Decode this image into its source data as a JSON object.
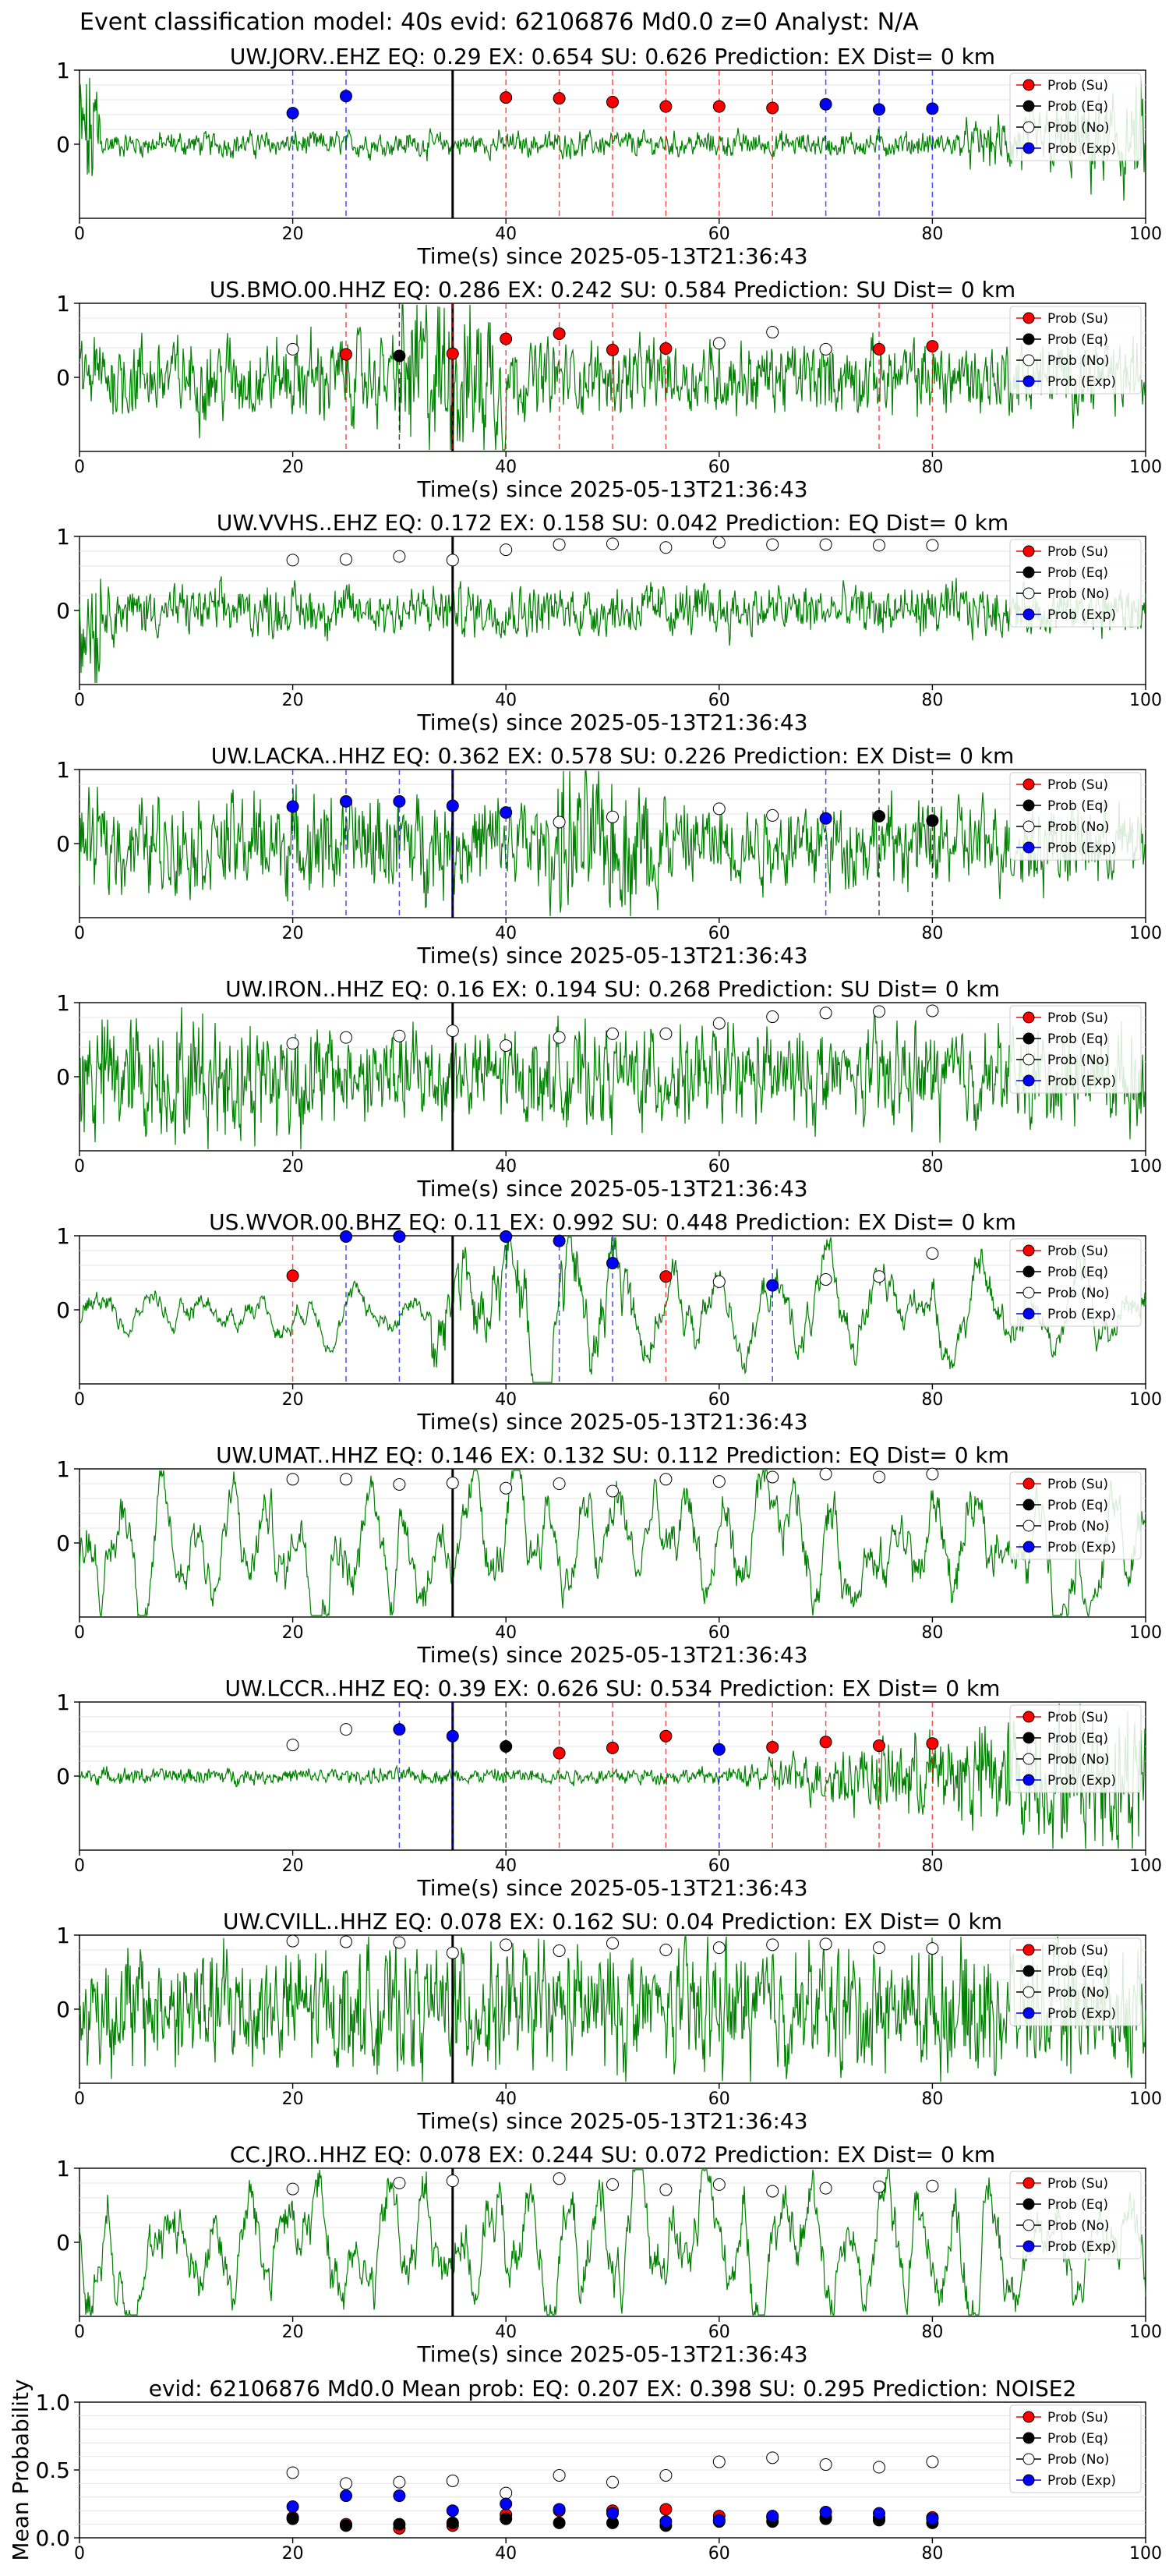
{
  "figure_title": "Event classification model: 40s evid: 62106876 Md0.0 z=0 Analyst: N/A",
  "legend_labels": [
    "Prob (Su)",
    "Prob (Eq)",
    "Prob (No)",
    "Prob (Exp)"
  ],
  "colors": {
    "su": "#ff0000",
    "eq": "#000000",
    "no": "#ffffff",
    "exp": "#0000ff",
    "trace": "#008000",
    "pick": "#000000"
  },
  "x_ticks": [
    "0",
    "20",
    "40",
    "60",
    "80",
    "100"
  ],
  "y_ticks_panel": [
    "0",
    "1"
  ],
  "y_ticks_mean": [
    "0.0",
    "0.5",
    "1.0"
  ],
  "xlabel": "Time(s) since 2025-05-13T21:36:43",
  "mean_ylabel": "Mean Probability",
  "chart_data": [
    {
      "type": "line",
      "title": "UW.JORV..EHZ   EQ: 0.29  EX: 0.654  SU: 0.626   Prediction: EX    Dist= 0 km",
      "xlim": [
        0,
        100
      ],
      "ylim": [
        -1,
        1
      ],
      "pick_time": 35,
      "points": [
        {
          "x": 20,
          "y": 0.42,
          "cls": "exp"
        },
        {
          "x": 25,
          "y": 0.65,
          "cls": "exp"
        },
        {
          "x": 40,
          "y": 0.63,
          "cls": "su"
        },
        {
          "x": 45,
          "y": 0.62,
          "cls": "su"
        },
        {
          "x": 50,
          "y": 0.57,
          "cls": "su"
        },
        {
          "x": 55,
          "y": 0.51,
          "cls": "su"
        },
        {
          "x": 60,
          "y": 0.51,
          "cls": "su"
        },
        {
          "x": 65,
          "y": 0.49,
          "cls": "su"
        },
        {
          "x": 70,
          "y": 0.54,
          "cls": "exp"
        },
        {
          "x": 75,
          "y": 0.47,
          "cls": "exp"
        },
        {
          "x": 80,
          "y": 0.48,
          "cls": "exp"
        }
      ]
    },
    {
      "type": "line",
      "title": "US.BMO.00.HHZ   EQ: 0.286  EX: 0.242  SU: 0.584   Prediction: SU    Dist= 0 km",
      "xlim": [
        0,
        100
      ],
      "ylim": [
        -1,
        1
      ],
      "pick_time": 35,
      "points": [
        {
          "x": 20,
          "y": 0.38,
          "cls": "no"
        },
        {
          "x": 25,
          "y": 0.31,
          "cls": "su"
        },
        {
          "x": 30,
          "y": 0.29,
          "cls": "eq"
        },
        {
          "x": 35,
          "y": 0.32,
          "cls": "su"
        },
        {
          "x": 40,
          "y": 0.52,
          "cls": "su"
        },
        {
          "x": 45,
          "y": 0.59,
          "cls": "su"
        },
        {
          "x": 50,
          "y": 0.37,
          "cls": "su"
        },
        {
          "x": 55,
          "y": 0.39,
          "cls": "su"
        },
        {
          "x": 60,
          "y": 0.46,
          "cls": "no"
        },
        {
          "x": 65,
          "y": 0.61,
          "cls": "no"
        },
        {
          "x": 70,
          "y": 0.38,
          "cls": "no"
        },
        {
          "x": 75,
          "y": 0.38,
          "cls": "su"
        },
        {
          "x": 80,
          "y": 0.42,
          "cls": "su"
        }
      ]
    },
    {
      "type": "line",
      "title": "UW.VVHS..EHZ   EQ: 0.172  EX: 0.158  SU: 0.042   Prediction: EQ    Dist= 0 km",
      "xlim": [
        0,
        100
      ],
      "ylim": [
        -1,
        1
      ],
      "pick_time": 35,
      "points": [
        {
          "x": 20,
          "y": 0.68,
          "cls": "no"
        },
        {
          "x": 25,
          "y": 0.69,
          "cls": "no"
        },
        {
          "x": 30,
          "y": 0.73,
          "cls": "no"
        },
        {
          "x": 35,
          "y": 0.68,
          "cls": "no"
        },
        {
          "x": 40,
          "y": 0.82,
          "cls": "no"
        },
        {
          "x": 45,
          "y": 0.89,
          "cls": "no"
        },
        {
          "x": 50,
          "y": 0.9,
          "cls": "no"
        },
        {
          "x": 55,
          "y": 0.85,
          "cls": "no"
        },
        {
          "x": 60,
          "y": 0.92,
          "cls": "no"
        },
        {
          "x": 65,
          "y": 0.89,
          "cls": "no"
        },
        {
          "x": 70,
          "y": 0.89,
          "cls": "no"
        },
        {
          "x": 75,
          "y": 0.88,
          "cls": "no"
        },
        {
          "x": 80,
          "y": 0.88,
          "cls": "no"
        }
      ]
    },
    {
      "type": "line",
      "title": "UW.LACKA..HHZ   EQ: 0.362  EX: 0.578  SU: 0.226   Prediction: EX    Dist= 0 km",
      "xlim": [
        0,
        100
      ],
      "ylim": [
        -1,
        1
      ],
      "pick_time": 35,
      "points": [
        {
          "x": 20,
          "y": 0.5,
          "cls": "exp"
        },
        {
          "x": 25,
          "y": 0.57,
          "cls": "exp"
        },
        {
          "x": 30,
          "y": 0.57,
          "cls": "exp"
        },
        {
          "x": 35,
          "y": 0.51,
          "cls": "exp"
        },
        {
          "x": 40,
          "y": 0.42,
          "cls": "exp"
        },
        {
          "x": 45,
          "y": 0.29,
          "cls": "no"
        },
        {
          "x": 50,
          "y": 0.36,
          "cls": "no"
        },
        {
          "x": 60,
          "y": 0.47,
          "cls": "no"
        },
        {
          "x": 65,
          "y": 0.38,
          "cls": "no"
        },
        {
          "x": 70,
          "y": 0.34,
          "cls": "exp"
        },
        {
          "x": 75,
          "y": 0.37,
          "cls": "eq"
        },
        {
          "x": 80,
          "y": 0.31,
          "cls": "eq"
        }
      ]
    },
    {
      "type": "line",
      "title": "UW.IRON..HHZ   EQ: 0.16  EX: 0.194  SU: 0.268   Prediction: SU    Dist= 0 km",
      "xlim": [
        0,
        100
      ],
      "ylim": [
        -1,
        1
      ],
      "pick_time": 35,
      "points": [
        {
          "x": 20,
          "y": 0.45,
          "cls": "no"
        },
        {
          "x": 25,
          "y": 0.53,
          "cls": "no"
        },
        {
          "x": 30,
          "y": 0.55,
          "cls": "no"
        },
        {
          "x": 35,
          "y": 0.62,
          "cls": "no"
        },
        {
          "x": 40,
          "y": 0.42,
          "cls": "no"
        },
        {
          "x": 45,
          "y": 0.53,
          "cls": "no"
        },
        {
          "x": 50,
          "y": 0.58,
          "cls": "no"
        },
        {
          "x": 55,
          "y": 0.58,
          "cls": "no"
        },
        {
          "x": 60,
          "y": 0.72,
          "cls": "no"
        },
        {
          "x": 65,
          "y": 0.81,
          "cls": "no"
        },
        {
          "x": 70,
          "y": 0.86,
          "cls": "no"
        },
        {
          "x": 75,
          "y": 0.88,
          "cls": "no"
        },
        {
          "x": 80,
          "y": 0.89,
          "cls": "no"
        }
      ]
    },
    {
      "type": "line",
      "title": "US.WVOR.00.BHZ   EQ: 0.11  EX: 0.992  SU: 0.448   Prediction: EX    Dist= 0 km",
      "xlim": [
        0,
        100
      ],
      "ylim": [
        -1,
        1
      ],
      "pick_time": 35,
      "points": [
        {
          "x": 20,
          "y": 0.46,
          "cls": "su"
        },
        {
          "x": 25,
          "y": 0.99,
          "cls": "exp"
        },
        {
          "x": 30,
          "y": 0.99,
          "cls": "exp"
        },
        {
          "x": 40,
          "y": 0.99,
          "cls": "exp"
        },
        {
          "x": 45,
          "y": 0.93,
          "cls": "exp"
        },
        {
          "x": 50,
          "y": 0.63,
          "cls": "exp"
        },
        {
          "x": 55,
          "y": 0.45,
          "cls": "su"
        },
        {
          "x": 60,
          "y": 0.38,
          "cls": "no"
        },
        {
          "x": 65,
          "y": 0.33,
          "cls": "exp"
        },
        {
          "x": 70,
          "y": 0.41,
          "cls": "no"
        },
        {
          "x": 75,
          "y": 0.45,
          "cls": "no"
        },
        {
          "x": 80,
          "y": 0.76,
          "cls": "no"
        }
      ]
    },
    {
      "type": "line",
      "title": "UW.UMAT..HHZ   EQ: 0.146  EX: 0.132  SU: 0.112   Prediction: EQ    Dist= 0 km",
      "xlim": [
        0,
        100
      ],
      "ylim": [
        -1,
        1
      ],
      "pick_time": 35,
      "points": [
        {
          "x": 20,
          "y": 0.86,
          "cls": "no"
        },
        {
          "x": 25,
          "y": 0.86,
          "cls": "no"
        },
        {
          "x": 30,
          "y": 0.79,
          "cls": "no"
        },
        {
          "x": 35,
          "y": 0.81,
          "cls": "no"
        },
        {
          "x": 40,
          "y": 0.74,
          "cls": "no"
        },
        {
          "x": 45,
          "y": 0.8,
          "cls": "no"
        },
        {
          "x": 50,
          "y": 0.7,
          "cls": "no"
        },
        {
          "x": 55,
          "y": 0.86,
          "cls": "no"
        },
        {
          "x": 60,
          "y": 0.83,
          "cls": "no"
        },
        {
          "x": 65,
          "y": 0.89,
          "cls": "no"
        },
        {
          "x": 70,
          "y": 0.93,
          "cls": "no"
        },
        {
          "x": 75,
          "y": 0.89,
          "cls": "no"
        },
        {
          "x": 80,
          "y": 0.93,
          "cls": "no"
        }
      ]
    },
    {
      "type": "line",
      "title": "UW.LCCR..HHZ   EQ: 0.39  EX: 0.626  SU: 0.534   Prediction: EX    Dist= 0 km",
      "xlim": [
        0,
        100
      ],
      "ylim": [
        -1,
        1
      ],
      "pick_time": 35,
      "points": [
        {
          "x": 20,
          "y": 0.42,
          "cls": "no"
        },
        {
          "x": 25,
          "y": 0.63,
          "cls": "no"
        },
        {
          "x": 30,
          "y": 0.63,
          "cls": "exp"
        },
        {
          "x": 35,
          "y": 0.54,
          "cls": "exp"
        },
        {
          "x": 40,
          "y": 0.4,
          "cls": "eq"
        },
        {
          "x": 45,
          "y": 0.31,
          "cls": "su"
        },
        {
          "x": 50,
          "y": 0.38,
          "cls": "su"
        },
        {
          "x": 55,
          "y": 0.54,
          "cls": "su"
        },
        {
          "x": 60,
          "y": 0.36,
          "cls": "exp"
        },
        {
          "x": 65,
          "y": 0.39,
          "cls": "su"
        },
        {
          "x": 70,
          "y": 0.46,
          "cls": "su"
        },
        {
          "x": 75,
          "y": 0.41,
          "cls": "su"
        },
        {
          "x": 80,
          "y": 0.44,
          "cls": "su"
        }
      ]
    },
    {
      "type": "line",
      "title": "UW.CVILL..HHZ   EQ: 0.078  EX: 0.162  SU: 0.04   Prediction: EX    Dist= 0 km",
      "xlim": [
        0,
        100
      ],
      "ylim": [
        -1,
        1
      ],
      "pick_time": 35,
      "points": [
        {
          "x": 20,
          "y": 0.92,
          "cls": "no"
        },
        {
          "x": 25,
          "y": 0.91,
          "cls": "no"
        },
        {
          "x": 30,
          "y": 0.9,
          "cls": "no"
        },
        {
          "x": 35,
          "y": 0.76,
          "cls": "no"
        },
        {
          "x": 40,
          "y": 0.87,
          "cls": "no"
        },
        {
          "x": 45,
          "y": 0.79,
          "cls": "no"
        },
        {
          "x": 50,
          "y": 0.89,
          "cls": "no"
        },
        {
          "x": 55,
          "y": 0.8,
          "cls": "no"
        },
        {
          "x": 60,
          "y": 0.83,
          "cls": "no"
        },
        {
          "x": 65,
          "y": 0.87,
          "cls": "no"
        },
        {
          "x": 70,
          "y": 0.88,
          "cls": "no"
        },
        {
          "x": 75,
          "y": 0.83,
          "cls": "no"
        },
        {
          "x": 80,
          "y": 0.82,
          "cls": "no"
        }
      ]
    },
    {
      "type": "line",
      "title": "CC.JRO..HHZ   EQ: 0.078  EX: 0.244  SU: 0.072   Prediction: EX    Dist= 0 km",
      "xlim": [
        0,
        100
      ],
      "ylim": [
        -1,
        1
      ],
      "pick_time": 35,
      "points": [
        {
          "x": 20,
          "y": 0.72,
          "cls": "no"
        },
        {
          "x": 30,
          "y": 0.8,
          "cls": "no"
        },
        {
          "x": 35,
          "y": 0.83,
          "cls": "no"
        },
        {
          "x": 45,
          "y": 0.86,
          "cls": "no"
        },
        {
          "x": 50,
          "y": 0.78,
          "cls": "no"
        },
        {
          "x": 55,
          "y": 0.71,
          "cls": "no"
        },
        {
          "x": 60,
          "y": 0.78,
          "cls": "no"
        },
        {
          "x": 65,
          "y": 0.69,
          "cls": "no"
        },
        {
          "x": 70,
          "y": 0.73,
          "cls": "no"
        },
        {
          "x": 75,
          "y": 0.75,
          "cls": "no"
        },
        {
          "x": 80,
          "y": 0.76,
          "cls": "no"
        }
      ]
    },
    {
      "type": "scatter",
      "title": "evid: 62106876  Md0.0   Mean prob:   EQ: 0.207  EX: 0.398  SU: 0.295   Prediction: NOISE2",
      "xlim": [
        0,
        100
      ],
      "ylim": [
        0,
        1
      ],
      "x": [
        20,
        25,
        30,
        35,
        40,
        45,
        50,
        55,
        60,
        65,
        70,
        75,
        80
      ],
      "series": [
        {
          "name": "Prob (Su)",
          "cls": "su",
          "values": [
            0.15,
            0.1,
            0.07,
            0.09,
            0.17,
            0.2,
            0.2,
            0.21,
            0.16,
            0.15,
            0.15,
            0.15,
            0.15
          ]
        },
        {
          "name": "Prob (Eq)",
          "cls": "eq",
          "values": [
            0.14,
            0.09,
            0.1,
            0.11,
            0.14,
            0.11,
            0.11,
            0.09,
            0.12,
            0.12,
            0.14,
            0.13,
            0.11
          ]
        },
        {
          "name": "Prob (No)",
          "cls": "no",
          "values": [
            0.48,
            0.4,
            0.41,
            0.42,
            0.33,
            0.46,
            0.41,
            0.46,
            0.56,
            0.59,
            0.54,
            0.52,
            0.56
          ]
        },
        {
          "name": "Prob (Exp)",
          "cls": "exp",
          "values": [
            0.23,
            0.31,
            0.31,
            0.2,
            0.25,
            0.21,
            0.18,
            0.12,
            0.13,
            0.16,
            0.19,
            0.18,
            0.14
          ]
        }
      ]
    }
  ]
}
